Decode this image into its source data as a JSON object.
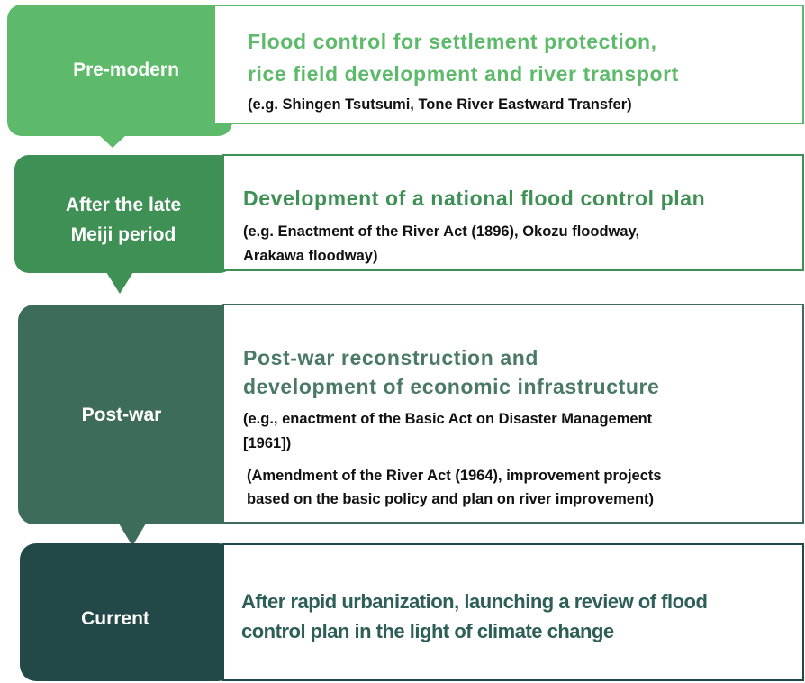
{
  "stages": [
    {
      "label": [
        "Pre-modern"
      ],
      "heading": [
        "Flood control for settlement protection,",
        "rice field development and river transport"
      ],
      "details": [
        "(e.g. Shingen Tsutsumi, Tone River Eastward Transfer)"
      ]
    },
    {
      "label": [
        "After the late",
        "Meiji period"
      ],
      "heading": [
        "Development of a national flood control plan"
      ],
      "details": [
        "(e.g. Enactment of the River Act (1896), Okozu floodway,",
        "Arakawa floodway)"
      ]
    },
    {
      "label": [
        "Post-war"
      ],
      "heading": [
        "Post-war reconstruction and",
        "development of economic infrastructure"
      ],
      "details": [
        "(e.g., enactment of the Basic Act on Disaster Management",
        "[1961])",
        "(Amendment of the River Act (1964), improvement projects",
        "based on the basic policy and plan on river improvement)"
      ]
    },
    {
      "label": [
        "Current"
      ],
      "heading": [
        "After rapid urbanization, launching a review of flood",
        "control plan in the light of climate change"
      ],
      "details": []
    }
  ]
}
